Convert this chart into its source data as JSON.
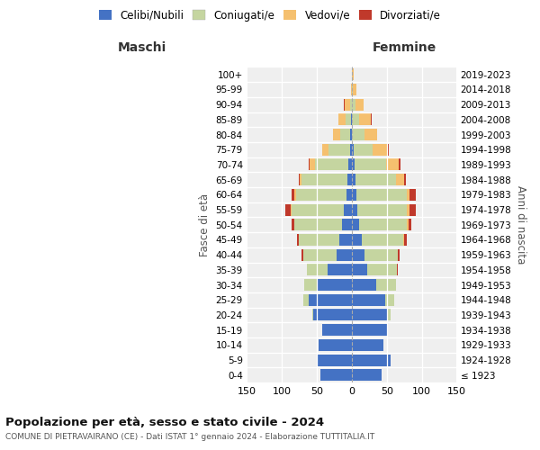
{
  "age_groups": [
    "100+",
    "95-99",
    "90-94",
    "85-89",
    "80-84",
    "75-79",
    "70-74",
    "65-69",
    "60-64",
    "55-59",
    "50-54",
    "45-49",
    "40-44",
    "35-39",
    "30-34",
    "25-29",
    "20-24",
    "15-19",
    "10-14",
    "5-9",
    "0-4"
  ],
  "birth_years": [
    "≤ 1923",
    "1924-1928",
    "1929-1933",
    "1934-1938",
    "1939-1943",
    "1944-1948",
    "1949-1953",
    "1954-1958",
    "1959-1963",
    "1964-1968",
    "1969-1973",
    "1974-1978",
    "1979-1983",
    "1984-1988",
    "1989-1993",
    "1994-1998",
    "1999-2003",
    "2004-2008",
    "2009-2013",
    "2014-2018",
    "2019-2023"
  ],
  "colors": {
    "celibi": "#4472C4",
    "coniugati": "#c5d5a0",
    "vedovi": "#f5c06f",
    "divorziati": "#c0392b"
  },
  "maschi": {
    "celibi": [
      0,
      0,
      0,
      1,
      2,
      3,
      5,
      7,
      8,
      12,
      14,
      18,
      22,
      35,
      50,
      62,
      55,
      42,
      48,
      50,
      45
    ],
    "coniugati": [
      0,
      0,
      3,
      8,
      15,
      30,
      48,
      65,
      72,
      75,
      68,
      58,
      48,
      30,
      18,
      7,
      2,
      0,
      0,
      0,
      0
    ],
    "vedovi": [
      0,
      1,
      7,
      10,
      10,
      10,
      8,
      3,
      2,
      1,
      0,
      0,
      0,
      0,
      0,
      0,
      0,
      0,
      0,
      0,
      0
    ],
    "divorziati": [
      0,
      0,
      1,
      1,
      0,
      0,
      1,
      1,
      5,
      8,
      5,
      2,
      2,
      0,
      0,
      0,
      0,
      0,
      0,
      0,
      0
    ]
  },
  "femmine": {
    "celibi": [
      0,
      0,
      0,
      0,
      0,
      2,
      4,
      5,
      6,
      8,
      10,
      14,
      18,
      22,
      35,
      48,
      50,
      50,
      45,
      55,
      42
    ],
    "coniugati": [
      0,
      1,
      5,
      10,
      18,
      28,
      45,
      58,
      72,
      70,
      68,
      60,
      48,
      42,
      28,
      12,
      5,
      0,
      0,
      0,
      0
    ],
    "vedovi": [
      2,
      5,
      12,
      17,
      18,
      22,
      18,
      12,
      5,
      5,
      3,
      1,
      0,
      0,
      0,
      0,
      0,
      0,
      0,
      0,
      0
    ],
    "divorziati": [
      0,
      0,
      0,
      1,
      0,
      1,
      2,
      2,
      8,
      8,
      4,
      4,
      2,
      2,
      0,
      0,
      0,
      0,
      0,
      0,
      0
    ]
  },
  "title": "Popolazione per età, sesso e stato civile - 2024",
  "subtitle": "COMUNE DI PIETRAVAIRANO (CE) - Dati ISTAT 1° gennaio 2024 - Elaborazione TUTTITALIA.IT",
  "xlabel_left": "Maschi",
  "xlabel_right": "Femmine",
  "ylabel_left": "Fasce di età",
  "ylabel_right": "Anni di nascita",
  "xlim": 150,
  "legend_labels": [
    "Celibi/Nubili",
    "Coniugati/e",
    "Vedovi/e",
    "Divorziati/e"
  ],
  "bg_color": "#efefef"
}
